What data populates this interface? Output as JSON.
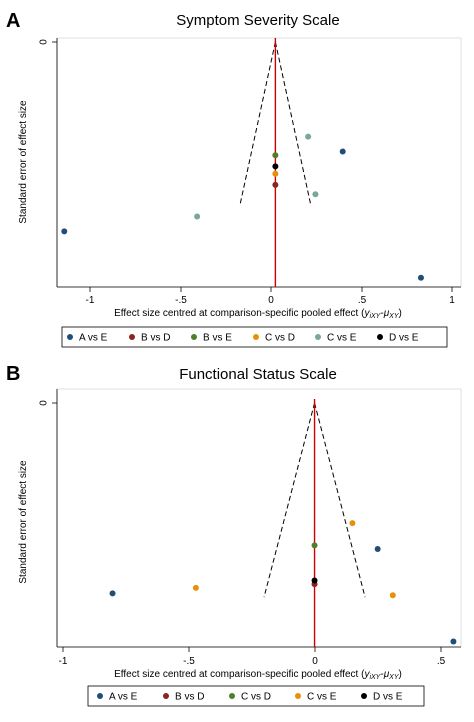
{
  "panels": [
    {
      "panel_label": "A",
      "title": "Symptom Severity Scale",
      "y_axis_label": "Standard error of effect size",
      "y_tick_label": "0",
      "x_axis_label_main": "Effect size centred at comparison-specific pooled effect (",
      "x_axis_label_math": "y",
      "x_axis_label_sub1": "iXY",
      "x_axis_label_mid": "-",
      "x_axis_label_mu": "μ",
      "x_axis_label_sub2": "XY",
      "x_axis_label_end": ")",
      "x_tick_labels": [
        "-1",
        "-.5",
        "0",
        ".5",
        "1"
      ],
      "legend": [
        {
          "label": "A vs E",
          "color": "#1f4e79"
        },
        {
          "label": "B vs D",
          "color": "#8b2323"
        },
        {
          "label": "B vs E",
          "color": "#4f7f2a"
        },
        {
          "label": "C vs D",
          "color": "#e8900c"
        },
        {
          "label": "C vs E",
          "color": "#7aa69b"
        },
        {
          "label": "D vs E",
          "color": "#000000"
        }
      ]
    },
    {
      "panel_label": "B",
      "title": "Functional Status Scale",
      "y_axis_label": "Standard error of effect size",
      "y_tick_label": "0",
      "x_axis_label_main": "Effect size centred at comparison-specific pooled effect (",
      "x_axis_label_math": "y",
      "x_axis_label_sub1": "iXY",
      "x_axis_label_mid": "-",
      "x_axis_label_mu": "μ",
      "x_axis_label_sub2": "XY",
      "x_axis_label_end": ")",
      "x_tick_labels": [
        "-1",
        "-.5",
        "0",
        ".5"
      ],
      "legend": [
        {
          "label": "A vs E",
          "color": "#1f4e79"
        },
        {
          "label": "B vs D",
          "color": "#8b2323"
        },
        {
          "label": "C vs D",
          "color": "#4f7f2a"
        },
        {
          "label": "C vs E",
          "color": "#e8900c"
        },
        {
          "label": "D vs E",
          "color": "#000000"
        }
      ]
    }
  ],
  "chart_data": [
    {
      "type": "scatter",
      "title": "Symptom Severity Scale",
      "xlabel": "Effect size centred at comparison-specific pooled effect (yiXY-μXY)",
      "ylabel": "Standard error of effect size",
      "xlim": [
        -1.2,
        1.02
      ],
      "ylim": [
        0,
        0.66
      ],
      "y_reversed": true,
      "x_ticks": [
        -1,
        -0.5,
        0,
        0.5,
        1
      ],
      "y_ticks": [
        0
      ],
      "reference_line_x": 0,
      "reference_line_color": "#cc0000",
      "funnel": {
        "apex": [
          0,
          0
        ],
        "left_bottom": [
          -0.195,
          0.44
        ],
        "right_bottom": [
          0.195,
          0.44
        ]
      },
      "legend_position": "bottom",
      "series": [
        {
          "name": "A vs E",
          "color": "#1f4e79",
          "points": [
            [
              -1.16,
              0.51
            ],
            [
              0.37,
              0.295
            ],
            [
              0.8,
              0.635
            ]
          ]
        },
        {
          "name": "B vs D",
          "color": "#8b2323",
          "points": [
            [
              0.0,
              0.385
            ]
          ]
        },
        {
          "name": "B vs E",
          "color": "#4f7f2a",
          "points": [
            [
              0.0,
              0.305
            ]
          ]
        },
        {
          "name": "C vs D",
          "color": "#e8900c",
          "points": [
            [
              0.0,
              0.355
            ]
          ]
        },
        {
          "name": "C vs E",
          "color": "#7aa69b",
          "points": [
            [
              -0.43,
              0.47
            ],
            [
              0.18,
              0.255
            ],
            [
              0.22,
              0.41
            ]
          ]
        },
        {
          "name": "D vs E",
          "color": "#000000",
          "points": [
            [
              0.0,
              0.335
            ]
          ]
        }
      ]
    },
    {
      "type": "scatter",
      "title": "Functional Status Scale",
      "xlabel": "Effect size centred at comparison-specific pooled effect (yiXY-μXY)",
      "ylabel": "Standard error of effect size",
      "xlim": [
        -1.02,
        0.58
      ],
      "ylim": [
        0,
        0.66
      ],
      "y_reversed": true,
      "x_ticks": [
        -1,
        -0.5,
        0,
        0.5
      ],
      "y_ticks": [
        0
      ],
      "reference_line_x": 0,
      "reference_line_color": "#cc0000",
      "funnel": {
        "apex": [
          0,
          0
        ],
        "left_bottom": [
          -0.2,
          0.525
        ],
        "right_bottom": [
          0.2,
          0.525
        ]
      },
      "legend_position": "bottom",
      "series": [
        {
          "name": "A vs E",
          "color": "#1f4e79",
          "points": [
            [
              -0.8,
              0.515
            ],
            [
              0.25,
              0.395
            ],
            [
              0.55,
              0.645
            ]
          ]
        },
        {
          "name": "B vs D",
          "color": "#8b2323",
          "points": [
            [
              0.0,
              0.49
            ]
          ]
        },
        {
          "name": "C vs D",
          "color": "#4f7f2a",
          "points": [
            [
              0.0,
              0.385
            ]
          ]
        },
        {
          "name": "C vs E",
          "color": "#e8900c",
          "points": [
            [
              -0.47,
              0.5
            ],
            [
              0.15,
              0.325
            ],
            [
              0.31,
              0.52
            ]
          ]
        },
        {
          "name": "D vs E",
          "color": "#000000",
          "points": [
            [
              0.0,
              0.48
            ]
          ]
        }
      ]
    }
  ]
}
